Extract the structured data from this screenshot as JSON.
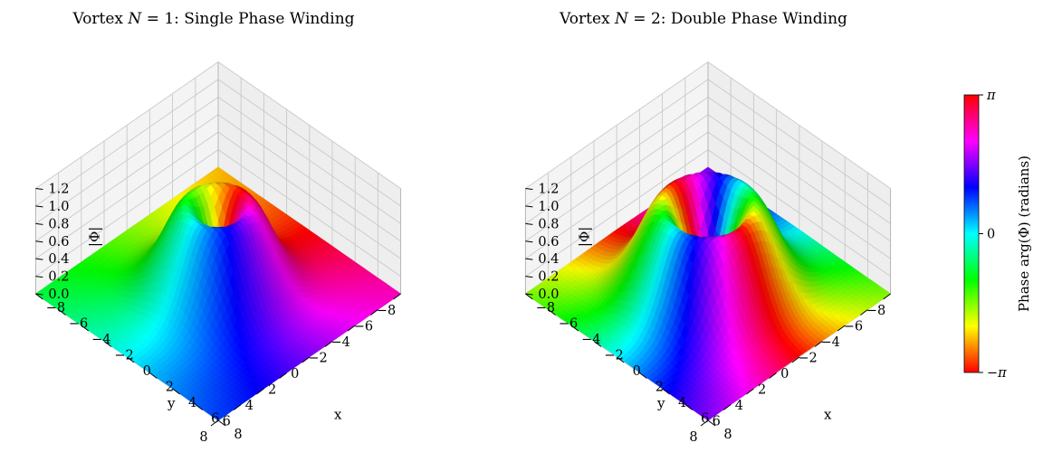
{
  "chart_data": [
    {
      "type": "surface",
      "title": "Vortex N = 1: Single Phase Winding",
      "title_parts": {
        "pre": "Vortex ",
        "var": "N",
        "post": " = 1: Single Phase Winding"
      },
      "winding_number": 1,
      "xlabel": "x",
      "ylabel": "y",
      "zlabel": "|Φ|",
      "xlim": [
        -8,
        8
      ],
      "ylim": [
        -8,
        8
      ],
      "zlim": [
        0,
        1.2
      ],
      "x_ticks": [
        "−8",
        "−6",
        "−4",
        "−2",
        "0",
        "2",
        "4",
        "6",
        "8"
      ],
      "y_ticks": [
        "−8",
        "−6",
        "−4",
        "−2",
        "0",
        "2",
        "4",
        "6",
        "8"
      ],
      "z_ticks": [
        "0.0",
        "0.2",
        "0.4",
        "0.6",
        "0.8",
        "1.0",
        "1.2"
      ],
      "surface_peak": 1.0,
      "peak_radius": 2.0,
      "color_by": "phase arg(Φ)",
      "grid": true
    },
    {
      "type": "surface",
      "title": "Vortex N = 2: Double Phase Winding",
      "title_parts": {
        "pre": "Vortex ",
        "var": "N",
        "post": " = 2: Double Phase Winding"
      },
      "winding_number": 2,
      "xlabel": "x",
      "ylabel": "y",
      "zlabel": "|Φ|",
      "xlim": [
        -8,
        8
      ],
      "ylim": [
        -8,
        8
      ],
      "zlim": [
        0,
        1.2
      ],
      "x_ticks": [
        "−8",
        "−6",
        "−4",
        "−2",
        "0",
        "2",
        "4",
        "6",
        "8"
      ],
      "y_ticks": [
        "−8",
        "−6",
        "−4",
        "−2",
        "0",
        "2",
        "4",
        "6",
        "8"
      ],
      "z_ticks": [
        "0.0",
        "0.2",
        "0.4",
        "0.6",
        "0.8",
        "1.0",
        "1.2"
      ],
      "surface_peak": 1.0,
      "peak_radius": 2.9,
      "color_by": "phase arg(Φ)",
      "grid": true
    }
  ],
  "colorbar": {
    "label": "Phase arg(Φ) (radians)",
    "colormap": "hsv",
    "range": [
      -3.14159,
      3.14159
    ],
    "tick_labels": [
      "−π",
      "0",
      "π"
    ],
    "tick_values": [
      -3.14159,
      0,
      3.14159
    ]
  }
}
